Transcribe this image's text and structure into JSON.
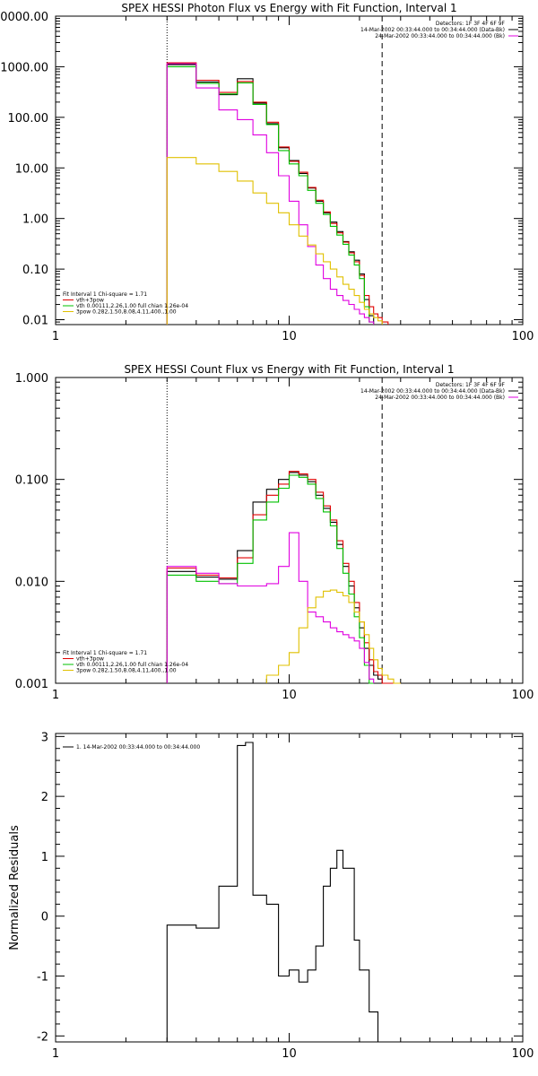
{
  "chart_data": [
    {
      "type": "line",
      "step": true,
      "title": "SPEX HESSI Photon Flux vs Energy with Fit Function, Interval 1",
      "xscale": "log",
      "yscale": "log",
      "xlim": [
        1,
        100
      ],
      "ylim": [
        0.008,
        10000
      ],
      "xticks": [
        "1",
        "10",
        "100"
      ],
      "yticks": [
        "0.01",
        "0.10",
        "1.00",
        "10.00",
        "100.00",
        "1000.00",
        "10000.00"
      ],
      "ylabel": "",
      "info_right": [
        "Detectors: 1F 3F 4F 6F 9F",
        "14-Mar-2002 00:33:44.000 to 00:34:44.000 (Data-Bk)",
        "24-Mar-2002 00:33:44.000 to 00:34:44.000 (Bk)"
      ],
      "info_colors": [
        "#000000",
        "#000000",
        "#e000e0"
      ],
      "legend": [
        {
          "text": "Fit Interval 1    Chi-square = 1.71",
          "color": "#000000"
        },
        {
          "text": "vth+3pow",
          "color": "#e00000"
        },
        {
          "text": "vth 0.00111,2.26,1.00   full chian 1.26e-04",
          "color": "#00c000"
        },
        {
          "text": "3pow 0.282,1.50,8.08,4.11,400.,1.00",
          "color": "#e0c000"
        }
      ],
      "vlines": [
        {
          "x": 3,
          "style": "dotted"
        },
        {
          "x": 25,
          "style": "dashed"
        }
      ],
      "edges": [
        3,
        4,
        5,
        6,
        7,
        8,
        9,
        10,
        11,
        12,
        13,
        14,
        15,
        16,
        17,
        18,
        19,
        20,
        21,
        22,
        23,
        24,
        25,
        26.5,
        28
      ],
      "series": [
        {
          "color": "#000000",
          "values": [
            1100,
            500,
            280,
            580,
            190,
            75,
            25,
            14,
            7.8,
            4.0,
            2.2,
            1.3,
            0.85,
            0.55,
            0.35,
            0.22,
            0.15,
            0.08,
            0.025,
            0.012,
            null,
            null,
            null,
            null
          ]
        },
        {
          "color": "#e00000",
          "values": [
            1200,
            540,
            310,
            510,
            200,
            80,
            26,
            13.5,
            8.2,
            4.1,
            2.3,
            1.35,
            0.8,
            0.52,
            0.34,
            0.21,
            0.14,
            0.075,
            0.03,
            0.018,
            0.013,
            0.011,
            0.009,
            null
          ]
        },
        {
          "color": "#00c000",
          "values": [
            1000,
            470,
            290,
            480,
            180,
            72,
            22,
            12.0,
            7.0,
            3.6,
            2.0,
            1.2,
            0.7,
            0.47,
            0.31,
            0.19,
            0.12,
            0.065,
            0.018,
            0.009,
            null,
            null,
            null,
            null
          ]
        },
        {
          "color": "#e000e0",
          "values": [
            1150,
            380,
            140,
            90,
            45,
            20,
            7.0,
            2.2,
            0.75,
            0.28,
            0.12,
            0.065,
            0.04,
            0.03,
            0.024,
            0.02,
            0.016,
            0.013,
            0.011,
            0.009,
            null,
            null,
            null,
            null
          ]
        },
        {
          "color": "#e0c000",
          "values": [
            16,
            12,
            8.5,
            5.5,
            3.2,
            2.0,
            1.3,
            0.75,
            0.45,
            0.3,
            0.2,
            0.14,
            0.1,
            0.07,
            0.05,
            0.04,
            0.03,
            0.022,
            0.016,
            0.013,
            0.011,
            0.0095,
            null,
            null
          ]
        }
      ]
    },
    {
      "type": "line",
      "step": true,
      "title": "SPEX HESSI Count Flux vs Energy with Fit Function, Interval 1",
      "xscale": "log",
      "yscale": "log",
      "xlim": [
        1,
        100
      ],
      "ylim": [
        0.001,
        1.0
      ],
      "xticks": [
        "1",
        "10",
        "100"
      ],
      "yticks": [
        "0.001",
        "0.010",
        "0.100",
        "1.000"
      ],
      "ylabel": "",
      "info_right": [
        "Detectors: 1F 3F 4F 6F 9F",
        "14-Mar-2002 00:33:44.000 to 00:34:44.000 (Data-Bk)",
        "24-Mar-2002 00:33:44.000 to 00:34:44.000 (Bk)"
      ],
      "info_colors": [
        "#000000",
        "#000000",
        "#e000e0"
      ],
      "legend": [
        {
          "text": "Fit Interval 1    Chi-square = 1.71",
          "color": "#000000"
        },
        {
          "text": "vth+3pow",
          "color": "#e00000"
        },
        {
          "text": "vth 0.00111,2.26,1.00   full chian 1.26e-04",
          "color": "#00c000"
        },
        {
          "text": "3pow 0.282,1.50,8.08,4.11,400.,1.00",
          "color": "#e0c000"
        }
      ],
      "vlines": [
        {
          "x": 3,
          "style": "dotted"
        },
        {
          "x": 25,
          "style": "dashed"
        }
      ],
      "edges": [
        3,
        4,
        5,
        6,
        7,
        8,
        9,
        10,
        11,
        12,
        13,
        14,
        15,
        16,
        17,
        18,
        19,
        20,
        21,
        22,
        23,
        24,
        25,
        26.5,
        28,
        30,
        32
      ],
      "series": [
        {
          "color": "#000000",
          "values": [
            0.0125,
            0.011,
            0.0105,
            0.02,
            0.06,
            0.08,
            0.1,
            0.117,
            0.11,
            0.095,
            0.07,
            0.052,
            0.038,
            0.023,
            0.014,
            0.009,
            0.0055,
            0.0035,
            0.0022,
            0.0015,
            0.0012,
            0.0011,
            null,
            null,
            null,
            null
          ]
        },
        {
          "color": "#e00000",
          "values": [
            0.0135,
            0.0115,
            0.0108,
            0.017,
            0.045,
            0.07,
            0.09,
            0.12,
            0.113,
            0.1,
            0.075,
            0.055,
            0.04,
            0.025,
            0.015,
            0.01,
            0.0062,
            0.004,
            0.0025,
            0.0017,
            0.0013,
            0.0012,
            0.001,
            0.001,
            0.001,
            null
          ]
        },
        {
          "color": "#00c000",
          "values": [
            0.0115,
            0.01,
            0.0095,
            0.015,
            0.04,
            0.06,
            0.082,
            0.11,
            0.105,
            0.09,
            0.065,
            0.048,
            0.035,
            0.021,
            0.012,
            0.0075,
            0.0045,
            0.0028,
            0.0015,
            0.0009,
            null,
            null,
            null,
            null,
            null,
            null
          ]
        },
        {
          "color": "#e000e0",
          "values": [
            0.014,
            0.012,
            0.0095,
            0.009,
            0.009,
            0.0095,
            0.014,
            0.03,
            0.01,
            0.005,
            0.0045,
            0.004,
            0.0035,
            0.0032,
            0.003,
            0.0028,
            0.0026,
            0.0022,
            0.0016,
            0.0011,
            null,
            null,
            null,
            null,
            null,
            null
          ]
        },
        {
          "color": "#e0c000",
          "values": [
            null,
            null,
            null,
            null,
            null,
            0.0012,
            0.0015,
            0.002,
            0.0035,
            0.0055,
            0.007,
            0.008,
            0.0082,
            0.0078,
            0.0072,
            0.0062,
            0.005,
            0.004,
            0.003,
            0.0022,
            0.0017,
            0.0014,
            0.0012,
            0.0011,
            0.001,
            null
          ]
        }
      ]
    },
    {
      "type": "line",
      "step": true,
      "title": "",
      "xscale": "log",
      "yscale": "linear",
      "xlim": [
        1,
        100
      ],
      "ylim": [
        -2.1,
        3.05
      ],
      "xticks": [
        "1",
        "10",
        "100"
      ],
      "yticks": [
        "-2",
        "-1",
        "0",
        "1",
        "2",
        "3"
      ],
      "ylabel": "Normalized Residuals",
      "legend": [
        {
          "text": "1. 14-Mar-2002 00:33:44.000 to 00:34:44.000",
          "color": "#000000"
        }
      ],
      "edges": [
        3,
        4,
        5,
        6,
        6.5,
        7,
        8,
        9,
        10,
        11,
        12,
        13,
        14,
        15,
        16,
        17,
        18,
        19,
        20,
        21,
        22,
        23,
        24,
        25
      ],
      "series": [
        {
          "color": "#000000",
          "values": [
            -0.15,
            -0.2,
            0.5,
            2.85,
            2.9,
            0.35,
            0.2,
            -1.0,
            -0.9,
            -1.1,
            -0.9,
            -0.5,
            0.5,
            0.8,
            1.1,
            0.8,
            0.8,
            -0.4,
            -0.9,
            -0.9,
            -1.6,
            -1.6,
            -2.1
          ]
        }
      ]
    }
  ]
}
